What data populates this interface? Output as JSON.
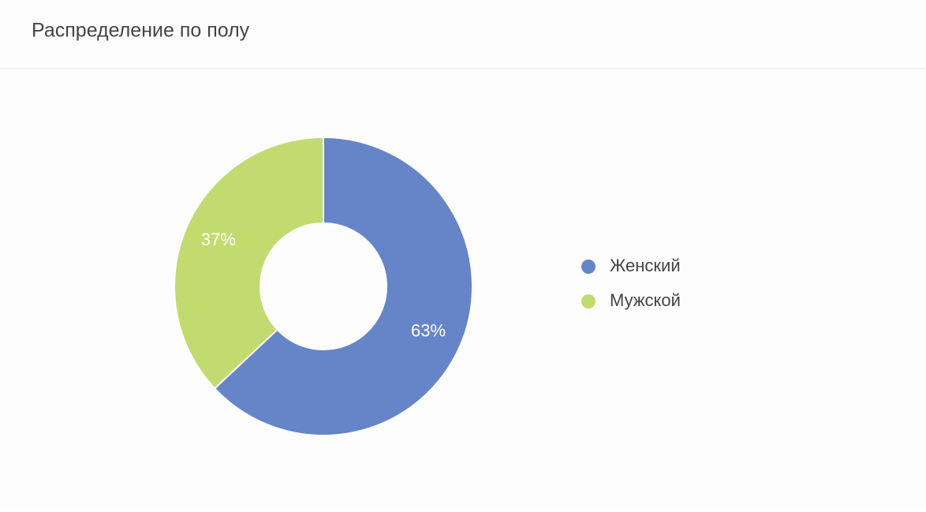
{
  "chart_data": {
    "type": "donut",
    "title": "Распределение по полу",
    "categories": [
      "Женский",
      "Мужской"
    ],
    "values": [
      63,
      37
    ],
    "value_labels": [
      "63%",
      "37%"
    ],
    "colors": [
      "#6585c8",
      "#c2db6f"
    ]
  }
}
